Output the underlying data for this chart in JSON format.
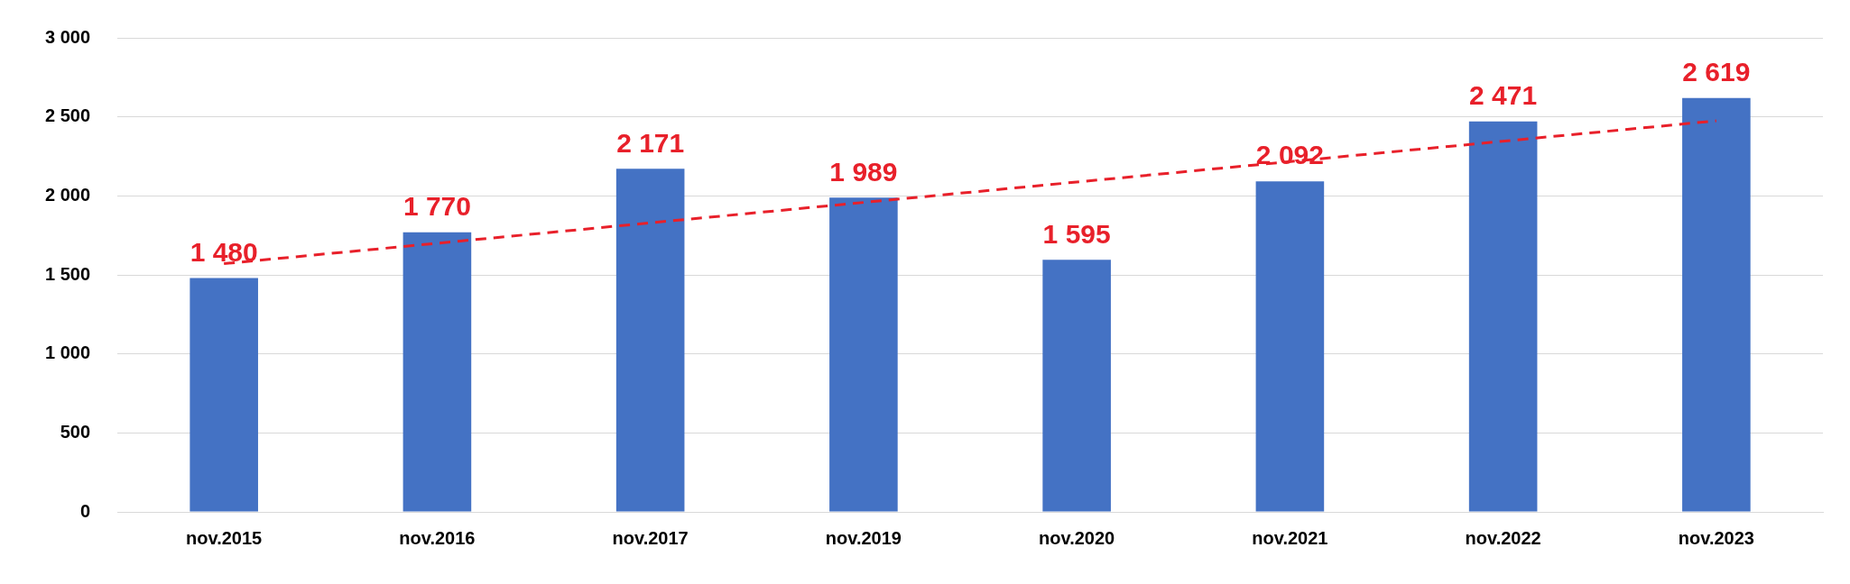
{
  "chart_data": {
    "type": "bar",
    "categories": [
      "nov.2015",
      "nov.2016",
      "nov.2017",
      "nov.2019",
      "nov.2020",
      "nov.2021",
      "nov.2022",
      "nov.2023"
    ],
    "series": [
      {
        "color": "#4472c4",
        "values": [
          1480,
          1770,
          2171,
          1989,
          1595,
          2092,
          2471,
          2619
        ],
        "value_labels": [
          "1 480",
          "1 770",
          "2 171",
          "1 989",
          "1 595",
          "2 092",
          "2 471",
          "2 619"
        ]
      },
      {
        "type": "line",
        "color": "#e8202a",
        "x": [
          "nov.2015",
          "nov.2023"
        ],
        "values": [
          1571,
          2475
        ],
        "line_style": "dashed",
        "marker": "none"
      }
    ],
    "ylim": [
      0,
      3000
    ],
    "yticks": [
      {
        "value": 0,
        "label": "0"
      },
      {
        "value": 500,
        "label": "500"
      },
      {
        "value": 1000,
        "label": "1 000"
      },
      {
        "value": 1500,
        "label": "1 500"
      },
      {
        "value": 2000,
        "label": "2 000"
      },
      {
        "value": 2500,
        "label": "2 500"
      },
      {
        "value": 3000,
        "label": "3 000"
      }
    ],
    "grid": "y",
    "legend": false
  }
}
